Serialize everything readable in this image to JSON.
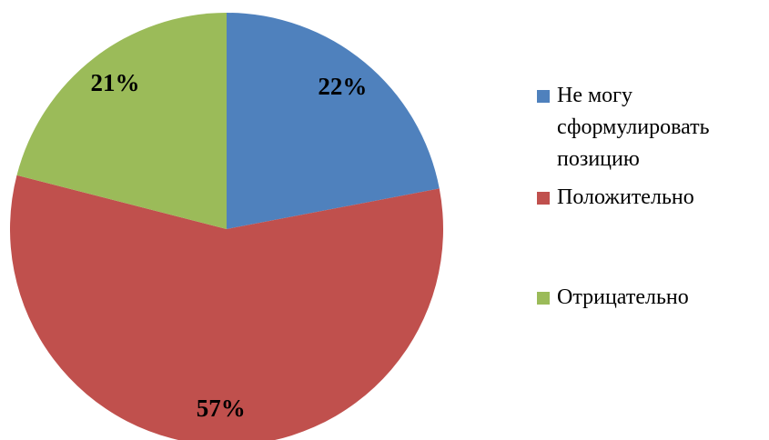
{
  "chart_data": {
    "type": "pie",
    "categories": [
      "Не могу сформулировать позицию",
      "Положительно",
      "Отрицательно"
    ],
    "values": [
      22,
      57,
      21
    ],
    "value_labels": [
      "22%",
      "57%",
      "21%"
    ],
    "colors": [
      "#4f81bd",
      "#c0504d",
      "#9bbb59"
    ],
    "legend": "right"
  }
}
